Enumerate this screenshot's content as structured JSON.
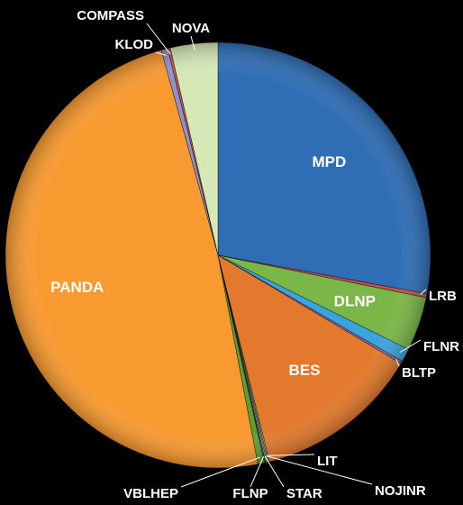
{
  "chart_data": {
    "type": "pie",
    "categories": [
      "MPD",
      "LRB",
      "DLNP",
      "FLNR",
      "BLTP",
      "BES",
      "LIT",
      "NOJINR",
      "STAR",
      "FLNP",
      "VBLHEP",
      "PANDA",
      "KLOD",
      "COMPASS",
      "NOVA"
    ],
    "values": [
      27.9,
      0.3,
      4.1,
      1.0,
      0.2,
      12.6,
      0.1,
      0.1,
      0.1,
      0.1,
      0.5,
      48.7,
      0.5,
      0.2,
      3.6
    ],
    "colors": [
      "#2f6eb5",
      "#c0504d",
      "#7ab648",
      "#3aa5db",
      "#8064a2",
      "#e2792c",
      "#9bbb59",
      "#4bacc6",
      "#f79646",
      "#2c4d75",
      "#5f9e32",
      "#f99a30",
      "#8e92cc",
      "#c0504d",
      "#d5e8b6"
    ]
  }
}
